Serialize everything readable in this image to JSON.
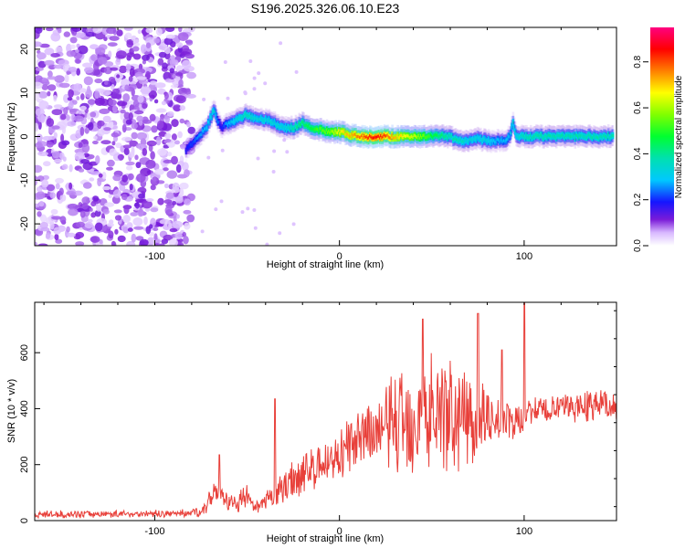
{
  "chart_data": [
    {
      "type": "heatmap",
      "title": "S196.2025.326.06.10.E23",
      "xlabel": "Height of straight line (km)",
      "ylabel": "Frequency (Hz)",
      "xlim": [
        -165,
        150
      ],
      "ylim": [
        -25,
        25
      ],
      "xticks": [
        -100,
        0,
        100
      ],
      "yticks": [
        -20,
        -10,
        0,
        10,
        20
      ],
      "colorbar": {
        "label": "Normalized spectral amplitude",
        "range": [
          0,
          0.95
        ],
        "ticks": [
          0.0,
          0.2,
          0.4,
          0.6,
          0.8
        ]
      },
      "ridge": {
        "x": [
          -83,
          -78,
          -72,
          -68,
          -64,
          -60,
          -55,
          -50,
          -45,
          -40,
          -35,
          -30,
          -25,
          -20,
          -15,
          -10,
          -5,
          0,
          5,
          10,
          15,
          20,
          25,
          30,
          35,
          40,
          45,
          50,
          55,
          60,
          65,
          70,
          75,
          80,
          85,
          90,
          92,
          94,
          96,
          100,
          110,
          120,
          130,
          140,
          148
        ],
        "freq": [
          -3,
          -1,
          2,
          6,
          2,
          3,
          4,
          5,
          4,
          4,
          3,
          2,
          2,
          3,
          2,
          1.5,
          1,
          1,
          0.5,
          0,
          0,
          0,
          0,
          0,
          0,
          0,
          0,
          0,
          0,
          0,
          -1,
          -1,
          -0.5,
          -1,
          -1,
          -1,
          0,
          3,
          0,
          0,
          0,
          0,
          0,
          0,
          0
        ],
        "amplitude": [
          0.2,
          0.25,
          0.3,
          0.35,
          0.2,
          0.3,
          0.35,
          0.4,
          0.35,
          0.35,
          0.35,
          0.35,
          0.4,
          0.45,
          0.5,
          0.55,
          0.6,
          0.7,
          0.75,
          0.8,
          0.85,
          0.9,
          0.85,
          0.75,
          0.7,
          0.65,
          0.6,
          0.5,
          0.45,
          0.4,
          0.4,
          0.35,
          0.35,
          0.35,
          0.3,
          0.3,
          0.3,
          0.35,
          0.35,
          0.4,
          0.4,
          0.4,
          0.4,
          0.4,
          0.4
        ]
      }
    },
    {
      "type": "line",
      "xlabel": "Height of straight line (km)",
      "ylabel": "SNR (10 * v/v)",
      "xlim": [
        -165,
        150
      ],
      "ylim": [
        0,
        780
      ],
      "xticks": [
        -100,
        0,
        100
      ],
      "yticks": [
        0,
        200,
        400,
        600
      ],
      "series": [
        {
          "name": "SNR",
          "color": "#e8403a",
          "envelope_x": [
            -165,
            -90,
            -80,
            -72,
            -68,
            -66,
            -62,
            -58,
            -55,
            -50,
            -46,
            -42,
            -38,
            -34,
            -30,
            -25,
            -20,
            -15,
            -10,
            -5,
            0,
            5,
            10,
            15,
            20,
            25,
            30,
            35,
            40,
            45,
            50,
            55,
            60,
            65,
            70,
            75,
            80,
            85,
            90,
            95,
            100,
            105,
            110,
            120,
            130,
            140,
            150
          ],
          "envelope_y": [
            22,
            25,
            28,
            45,
            110,
            120,
            70,
            60,
            70,
            85,
            40,
            55,
            75,
            95,
            120,
            150,
            165,
            185,
            200,
            215,
            235,
            260,
            280,
            300,
            320,
            340,
            355,
            370,
            380,
            385,
            390,
            390,
            385,
            380,
            370,
            365,
            360,
            360,
            355,
            350,
            380,
            390,
            395,
            400,
            410,
            420,
            400
          ],
          "spread_y": [
            12,
            12,
            14,
            25,
            45,
            60,
            40,
            30,
            35,
            40,
            20,
            30,
            40,
            50,
            60,
            70,
            70,
            75,
            80,
            80,
            90,
            95,
            100,
            110,
            130,
            150,
            180,
            200,
            220,
            230,
            220,
            210,
            200,
            190,
            180,
            160,
            120,
            90,
            80,
            70,
            50,
            50,
            50,
            50,
            55,
            55,
            55
          ],
          "peaks": [
            [
              -65,
              235
            ],
            [
              -35,
              435
            ],
            [
              45,
              720
            ],
            [
              75,
              740
            ],
            [
              100,
              780
            ],
            [
              88,
              610
            ]
          ]
        }
      ]
    }
  ]
}
